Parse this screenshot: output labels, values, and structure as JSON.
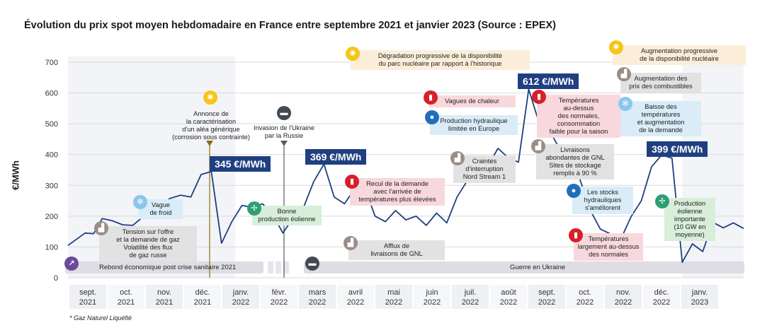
{
  "chart_data": {
    "type": "line",
    "title": "Évolution du prix spot moyen hebdomadaire en France entre septembre 2021 et janvier 2023 (Source : EPEX)",
    "ylabel": "€/MWh",
    "ylim": [
      0,
      700
    ],
    "yticks": [
      "0",
      "100",
      "200",
      "300",
      "400",
      "500",
      "600",
      "700"
    ],
    "grid": "horizontal",
    "months": [
      {
        "m": "sept.",
        "y": "2021"
      },
      {
        "m": "oct.",
        "y": "2021"
      },
      {
        "m": "nov.",
        "y": "2021"
      },
      {
        "m": "déc.",
        "y": "2021"
      },
      {
        "m": "janv.",
        "y": "2022"
      },
      {
        "m": "févr.",
        "y": "2022"
      },
      {
        "m": "mars",
        "y": "2022"
      },
      {
        "m": "avril",
        "y": "2022"
      },
      {
        "m": "mai",
        "y": "2022"
      },
      {
        "m": "juin",
        "y": "2022"
      },
      {
        "m": "juil.",
        "y": "2022"
      },
      {
        "m": "août",
        "y": "2022"
      },
      {
        "m": "sept.",
        "y": "2022"
      },
      {
        "m": "oct.",
        "y": "2022"
      },
      {
        "m": "nov.",
        "y": "2022"
      },
      {
        "m": "déc.",
        "y": "2022"
      },
      {
        "m": "janv.",
        "y": "2023"
      }
    ],
    "series": [
      {
        "values": [
          [
            0,
            105
          ],
          [
            0.5,
            145
          ],
          [
            0.75,
            143
          ],
          [
            1.0,
            192
          ],
          [
            1.3,
            185
          ],
          [
            1.6,
            172
          ],
          [
            1.9,
            170
          ],
          [
            2.2,
            198
          ],
          [
            2.5,
            220
          ],
          [
            2.75,
            240
          ],
          [
            3.0,
            258
          ],
          [
            3.3,
            268
          ],
          [
            3.6,
            262
          ],
          [
            3.9,
            335
          ],
          [
            4.2,
            345
          ],
          [
            4.5,
            112
          ],
          [
            4.8,
            182
          ],
          [
            5.1,
            235
          ],
          [
            5.4,
            228
          ],
          [
            5.7,
            240
          ],
          [
            6.0,
            205
          ],
          [
            6.3,
            145
          ],
          [
            6.6,
            195
          ],
          [
            6.9,
            228
          ],
          [
            7.2,
            312
          ],
          [
            7.5,
            369
          ],
          [
            7.8,
            262
          ],
          [
            8.1,
            240
          ],
          [
            8.4,
            288
          ],
          [
            8.7,
            290
          ],
          [
            9.0,
            200
          ],
          [
            9.3,
            182
          ],
          [
            9.6,
            218
          ],
          [
            9.9,
            188
          ],
          [
            10.2,
            200
          ],
          [
            10.5,
            170
          ],
          [
            10.8,
            210
          ],
          [
            11.1,
            178
          ],
          [
            11.4,
            262
          ],
          [
            11.7,
            315
          ],
          [
            12.0,
            318
          ],
          [
            12.3,
            362
          ],
          [
            12.6,
            420
          ],
          [
            12.9,
            390
          ],
          [
            13.2,
            375
          ],
          [
            13.5,
            612
          ],
          [
            13.8,
            505
          ],
          [
            14.1,
            480
          ],
          [
            14.4,
            420
          ],
          [
            14.7,
            400
          ],
          [
            15.0,
            320
          ],
          [
            15.3,
            220
          ],
          [
            15.6,
            158
          ],
          [
            15.9,
            142
          ],
          [
            16.2,
            125
          ],
          [
            16.5,
            198
          ],
          [
            16.8,
            250
          ],
          [
            17.1,
            360
          ],
          [
            17.4,
            399
          ],
          [
            17.7,
            388
          ],
          [
            18.0,
            50
          ],
          [
            18.3,
            110
          ],
          [
            18.6,
            85
          ],
          [
            18.9,
            180
          ],
          [
            19.2,
            162
          ],
          [
            19.5,
            178
          ],
          [
            19.8,
            160
          ]
        ]
      }
    ],
    "annotations": {
      "price_badges": [
        "345 €/MWh",
        "369 €/MWh",
        "612 €/MWh",
        "399 €/MWh"
      ],
      "notes": {
        "tension": "Tension sur l'offre\net la demande de gaz\nVolatilité des flux\nde gaz russe",
        "froid": "Vague\nde froid",
        "annonce": "Annonce de\nla caractérisation\nd'un aléa générique\n(corrosion sous contrainte)",
        "invasion": "Invasion de l'Ukraine\npar la Russie",
        "eolien1": "Bonne\nproduction éolienne",
        "recul": "Recul de la demande\navec l'arrivée de\ntempératures plus élevées",
        "afflux": "Afflux de\nlivraisons de GNL",
        "degradation": "Dégradation progressive de la disponibilité\ndu parc nucléaire par rapport à l'historique",
        "chaleur": "Vagues de chaleur",
        "hydro": "Production hydraulique\nlimitée en Europe",
        "craintes": "Craintes\nd'interruption\nNord Stream 1",
        "temp_dessus": "Températures\nau-dessus\ndes normales,\nconsommation\nfaible pour la saison",
        "gnl": "Livraisons\nabondantes de GNL\nSites de stockage\nremplis à 90 %",
        "stocks": "Les stocks\nhydrauliques\ns'améliorent",
        "temp_large": "Températures\nlargement au-dessus\ndes normales",
        "augm_nucl": "Augmentation progressive\nde la disponibilité nucléaire",
        "combustibles": "Augmentation des\nprix des combustibles",
        "baisse_temp": "Baisse des\ntempératures\net augmentation\nde la demande",
        "eolien2": "Production\néolienne\nimportante\n(10 GW en\nmoyenne)"
      },
      "bands": {
        "rebond": "Rebond économique post crise sanitaire 2021",
        "guerre": "Guerre en Ukraine"
      }
    }
  },
  "footnote": "* Gaz Naturel Liquéfié",
  "colors": {
    "line": "#1f3f80",
    "badge": "#1f3f80",
    "vline_annonce": "#8a6d1c",
    "vline_invasion": "#555a66",
    "band": "#dedde3"
  }
}
